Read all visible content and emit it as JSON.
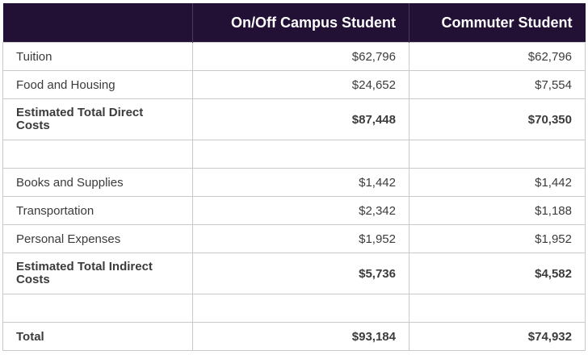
{
  "header": {
    "col_1": "",
    "col_2": "On/Off Campus Student",
    "col_3": "Commuter Student"
  },
  "rows": [
    {
      "label": "Tuition",
      "campus": "$62,796",
      "commuter": "$62,796"
    },
    {
      "label": "Food and Housing",
      "campus": "$24,652",
      "commuter": "$7,554"
    },
    {
      "label": "Estimated Total Direct Costs",
      "campus": "$87,448",
      "commuter": "$70,350"
    },
    {
      "label": "",
      "campus": "",
      "commuter": ""
    },
    {
      "label": "Books and Supplies",
      "campus": "$1,442",
      "commuter": "$1,442"
    },
    {
      "label": "Transportation",
      "campus": "$2,342",
      "commuter": "$1,188"
    },
    {
      "label": "Personal Expenses",
      "campus": "$1,952",
      "commuter": "$1,952"
    },
    {
      "label": "Estimated Total Indirect Costs",
      "campus": "$5,736",
      "commuter": "$4,582"
    },
    {
      "label": "",
      "campus": "",
      "commuter": ""
    },
    {
      "label": "Total",
      "campus": "$93,184",
      "commuter": "$74,932"
    }
  ]
}
